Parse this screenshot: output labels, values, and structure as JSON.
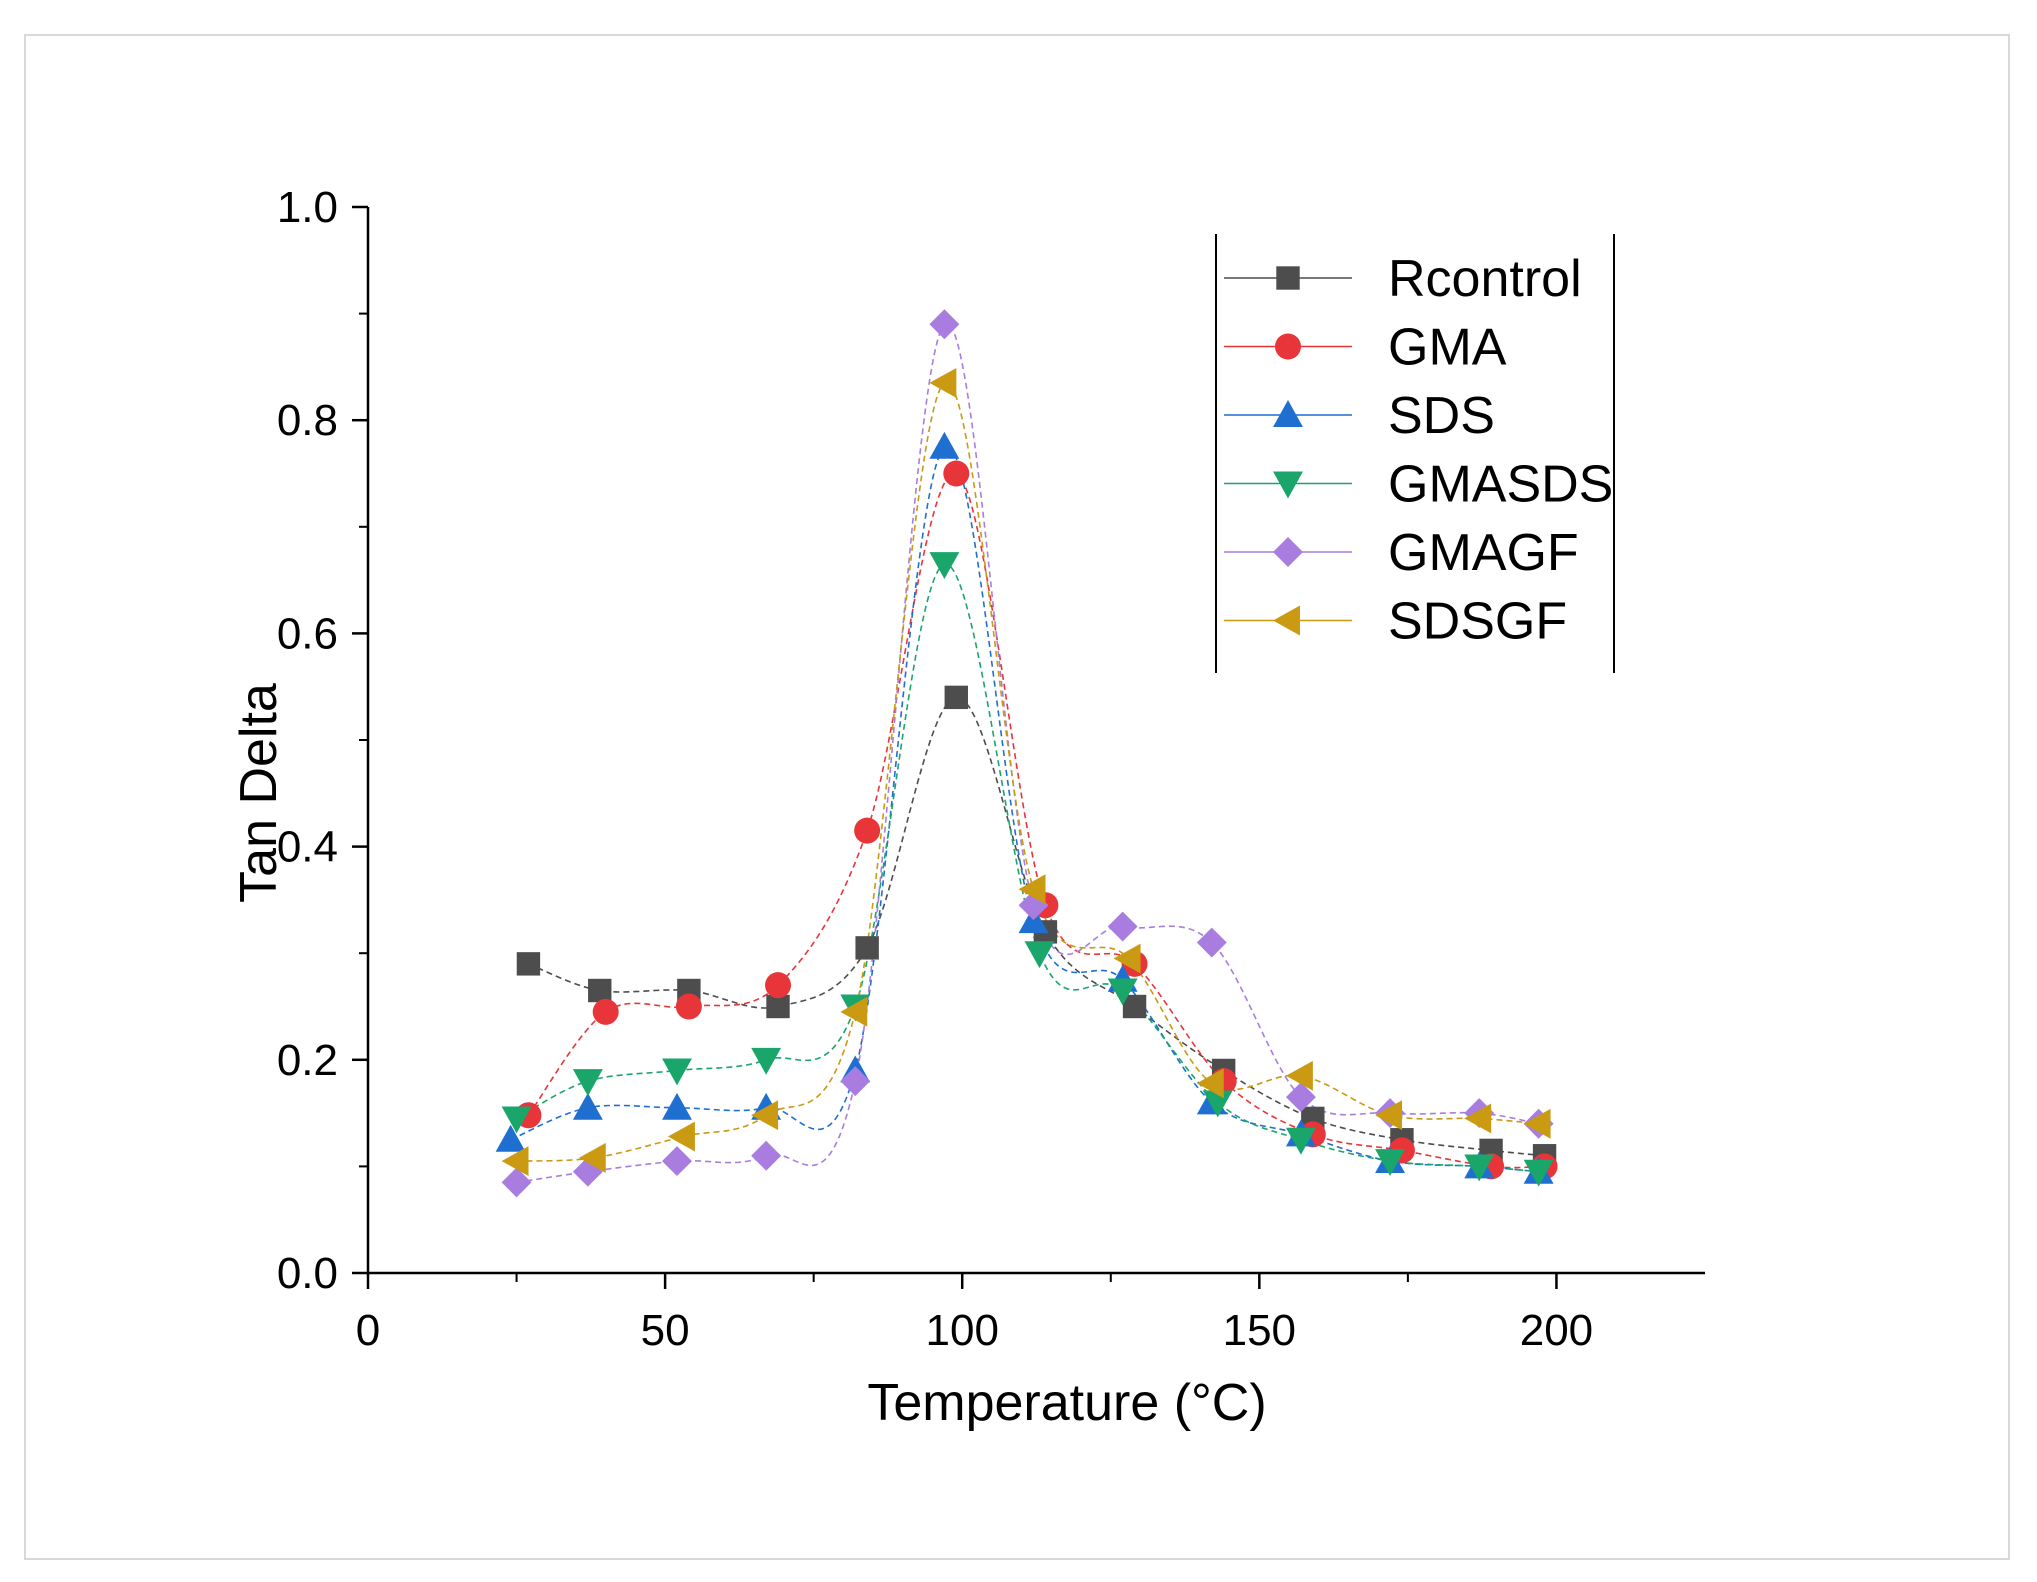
{
  "chart_data": {
    "type": "line",
    "title": "",
    "xlabel": "Temperature (°C)",
    "ylabel": "Tan Delta",
    "xlim": [
      0,
      225
    ],
    "ylim": [
      0,
      1.0
    ],
    "x_ticks": [
      0,
      50,
      100,
      150,
      200
    ],
    "y_ticks": [
      0.0,
      0.2,
      0.4,
      0.6,
      0.8,
      1.0
    ],
    "x_tick_labels": [
      "0",
      "50",
      "100",
      "150",
      "200"
    ],
    "y_tick_labels": [
      "0.0",
      "0.2",
      "0.4",
      "0.6",
      "0.8",
      "1.0"
    ],
    "grid": false,
    "legend_position": "top-right",
    "series": [
      {
        "name": "Rcontrol",
        "color": "#4d4d4d",
        "marker": "square",
        "points": [
          [
            27,
            0.29
          ],
          [
            39,
            0.265
          ],
          [
            54,
            0.265
          ],
          [
            69,
            0.25
          ],
          [
            84,
            0.305
          ],
          [
            99,
            0.54
          ],
          [
            114,
            0.32
          ],
          [
            129,
            0.25
          ],
          [
            144,
            0.19
          ],
          [
            159,
            0.145
          ],
          [
            174,
            0.125
          ],
          [
            189,
            0.115
          ],
          [
            198,
            0.11
          ]
        ]
      },
      {
        "name": "GMA",
        "color": "#e8353a",
        "marker": "circle",
        "points": [
          [
            27,
            0.148
          ],
          [
            40,
            0.245
          ],
          [
            54,
            0.25
          ],
          [
            69,
            0.27
          ],
          [
            84,
            0.415
          ],
          [
            99,
            0.75
          ],
          [
            114,
            0.345
          ],
          [
            129,
            0.29
          ],
          [
            144,
            0.18
          ],
          [
            159,
            0.13
          ],
          [
            174,
            0.115
          ],
          [
            189,
            0.1
          ],
          [
            198,
            0.1
          ]
        ]
      },
      {
        "name": "SDS",
        "color": "#1f6fd1",
        "marker": "triangle-up",
        "points": [
          [
            24,
            0.125
          ],
          [
            37,
            0.155
          ],
          [
            52,
            0.155
          ],
          [
            67,
            0.155
          ],
          [
            82,
            0.19
          ],
          [
            97,
            0.775
          ],
          [
            112,
            0.33
          ],
          [
            127,
            0.275
          ],
          [
            142,
            0.16
          ],
          [
            157,
            0.13
          ],
          [
            172,
            0.105
          ],
          [
            187,
            0.1
          ],
          [
            197,
            0.095
          ]
        ]
      },
      {
        "name": "GMASDS",
        "color": "#1aa66a",
        "marker": "triangle-down",
        "points": [
          [
            25,
            0.145
          ],
          [
            37,
            0.18
          ],
          [
            52,
            0.19
          ],
          [
            67,
            0.2
          ],
          [
            82,
            0.25
          ],
          [
            97,
            0.665
          ],
          [
            113,
            0.3
          ],
          [
            127,
            0.265
          ],
          [
            143,
            0.16
          ],
          [
            157,
            0.125
          ],
          [
            172,
            0.105
          ],
          [
            187,
            0.1
          ],
          [
            197,
            0.095
          ]
        ]
      },
      {
        "name": "GMAGF",
        "color": "#a97de0",
        "marker": "diamond",
        "points": [
          [
            25,
            0.085
          ],
          [
            37,
            0.095
          ],
          [
            52,
            0.105
          ],
          [
            67,
            0.11
          ],
          [
            82,
            0.18
          ],
          [
            97,
            0.89
          ],
          [
            112,
            0.345
          ],
          [
            127,
            0.325
          ],
          [
            142,
            0.31
          ],
          [
            157,
            0.165
          ],
          [
            172,
            0.15
          ],
          [
            187,
            0.15
          ],
          [
            197,
            0.14
          ]
        ]
      },
      {
        "name": "SDSGF",
        "color": "#c99a12",
        "marker": "triangle-left",
        "points": [
          [
            25,
            0.105
          ],
          [
            38,
            0.108
          ],
          [
            53,
            0.128
          ],
          [
            67,
            0.148
          ],
          [
            82,
            0.245
          ],
          [
            97,
            0.835
          ],
          [
            112,
            0.36
          ],
          [
            128,
            0.295
          ],
          [
            142,
            0.178
          ],
          [
            157,
            0.185
          ],
          [
            172,
            0.148
          ],
          [
            187,
            0.145
          ],
          [
            197,
            0.14
          ]
        ]
      }
    ]
  }
}
